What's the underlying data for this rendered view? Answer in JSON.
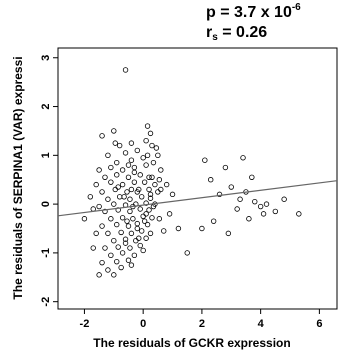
{
  "chart_data": {
    "type": "scatter",
    "stats": {
      "p_text": "p = 3.7 x 10",
      "p_exp": "-6",
      "r_text": "r",
      "r_sub": "s",
      "r_value": "= 0.26"
    },
    "xlabel": "The residuals of GCKR expression",
    "ylabel": "The residuals of SERPINA1 (VAR) expressi",
    "xlim": [
      -2.9,
      6.6
    ],
    "ylim": [
      -2.15,
      3.2
    ],
    "x_ticks": [
      -2,
      0,
      2,
      4,
      6
    ],
    "y_ticks": [
      -2,
      -1,
      0,
      1,
      2,
      3
    ],
    "grid": false,
    "trend_line": {
      "x": [
        -2.9,
        6.6
      ],
      "y": [
        -0.24,
        0.48
      ]
    },
    "points": [
      [
        -0.6,
        2.75
      ],
      [
        0.15,
        1.6
      ],
      [
        0.25,
        1.45
      ],
      [
        -1.0,
        1.5
      ],
      [
        -1.4,
        1.4
      ],
      [
        -0.4,
        1.25
      ],
      [
        -0.8,
        1.2
      ],
      [
        0.1,
        1.3
      ],
      [
        0.3,
        1.2
      ],
      [
        -1.2,
        1.0
      ],
      [
        -0.6,
        1.05
      ],
      [
        -0.2,
        1.1
      ],
      [
        0.5,
        1.0
      ],
      [
        -0.9,
        0.85
      ],
      [
        -0.4,
        0.9
      ],
      [
        0.0,
        0.95
      ],
      [
        0.35,
        0.85
      ],
      [
        -1.5,
        0.7
      ],
      [
        -1.1,
        0.75
      ],
      [
        -0.7,
        0.7
      ],
      [
        -0.3,
        0.75
      ],
      [
        0.1,
        0.8
      ],
      [
        0.6,
        0.7
      ],
      [
        -1.3,
        0.55
      ],
      [
        -0.9,
        0.6
      ],
      [
        -0.5,
        0.55
      ],
      [
        -0.1,
        0.6
      ],
      [
        0.3,
        0.55
      ],
      [
        0.55,
        0.5
      ],
      [
        -1.6,
        0.4
      ],
      [
        -1.1,
        0.45
      ],
      [
        -0.7,
        0.4
      ],
      [
        -0.3,
        0.45
      ],
      [
        0.05,
        0.45
      ],
      [
        0.4,
        0.4
      ],
      [
        -1.4,
        0.25
      ],
      [
        -0.95,
        0.3
      ],
      [
        -0.55,
        0.25
      ],
      [
        -0.15,
        0.3
      ],
      [
        0.2,
        0.3
      ],
      [
        0.5,
        0.25
      ],
      [
        -1.2,
        0.1
      ],
      [
        -0.8,
        0.15
      ],
      [
        -0.45,
        0.1
      ],
      [
        -0.05,
        0.15
      ],
      [
        0.25,
        0.12
      ],
      [
        -1.5,
        -0.05
      ],
      [
        -1.0,
        0.0
      ],
      [
        -0.6,
        -0.02
      ],
      [
        -0.25,
        0.0
      ],
      [
        0.1,
        0.02
      ],
      [
        0.4,
        0.0
      ],
      [
        -1.3,
        -0.15
      ],
      [
        -0.85,
        -0.12
      ],
      [
        -0.45,
        -0.15
      ],
      [
        -0.1,
        -0.1
      ],
      [
        0.2,
        -0.12
      ],
      [
        -1.1,
        -0.3
      ],
      [
        -0.7,
        -0.28
      ],
      [
        -0.35,
        -0.3
      ],
      [
        0.0,
        -0.25
      ],
      [
        0.3,
        -0.28
      ],
      [
        -1.4,
        -0.45
      ],
      [
        -0.9,
        -0.42
      ],
      [
        -0.5,
        -0.45
      ],
      [
        -0.2,
        -0.4
      ],
      [
        0.15,
        -0.42
      ],
      [
        -1.2,
        -0.6
      ],
      [
        -0.75,
        -0.58
      ],
      [
        -0.4,
        -0.6
      ],
      [
        -0.05,
        -0.55
      ],
      [
        0.25,
        -0.6
      ],
      [
        -1.0,
        -0.75
      ],
      [
        -0.6,
        -0.72
      ],
      [
        -0.25,
        -0.75
      ],
      [
        0.1,
        -0.7
      ],
      [
        -1.3,
        -0.9
      ],
      [
        -0.85,
        -0.88
      ],
      [
        -0.45,
        -0.9
      ],
      [
        -0.1,
        -0.85
      ],
      [
        -1.1,
        -1.05
      ],
      [
        -0.7,
        -1.0
      ],
      [
        -0.3,
        -1.05
      ],
      [
        -1.4,
        -1.2
      ],
      [
        -0.9,
        -1.18
      ],
      [
        -0.5,
        -1.15
      ],
      [
        -1.2,
        -1.35
      ],
      [
        -0.75,
        -1.3
      ],
      [
        -1.5,
        -1.45
      ],
      [
        -1.0,
        -1.45
      ],
      [
        -0.4,
        -1.25
      ],
      [
        -2.0,
        -0.3
      ],
      [
        -1.7,
        -0.1
      ],
      [
        -1.6,
        -0.6
      ],
      [
        -1.8,
        0.15
      ],
      [
        -1.7,
        -0.9
      ],
      [
        -0.55,
        -0.35
      ],
      [
        -0.35,
        -0.05
      ],
      [
        -0.2,
        0.25
      ],
      [
        0.05,
        -0.35
      ],
      [
        0.2,
        0.55
      ],
      [
        -0.65,
        0.15
      ],
      [
        0.15,
        1.0
      ],
      [
        0.45,
        1.15
      ],
      [
        -0.85,
        0.35
      ],
      [
        -0.15,
        -0.7
      ],
      [
        0.35,
        -0.05
      ],
      [
        -0.3,
        0.65
      ],
      [
        0.55,
        -0.3
      ],
      [
        -0.95,
        1.25
      ],
      [
        -0.5,
        0.8
      ],
      [
        0.0,
        -0.95
      ],
      [
        -0.6,
        -0.8
      ],
      [
        0.25,
        0.2
      ],
      [
        -0.4,
        0.3
      ],
      [
        0.1,
        -0.2
      ],
      [
        -0.2,
        -0.5
      ],
      [
        0.6,
        0.3
      ],
      [
        2.1,
        0.9
      ],
      [
        2.8,
        0.75
      ],
      [
        3.4,
        0.95
      ],
      [
        3.7,
        0.55
      ],
      [
        2.3,
        0.5
      ],
      [
        2.6,
        0.2
      ],
      [
        3.0,
        0.35
      ],
      [
        3.3,
        0.1
      ],
      [
        3.5,
        0.25
      ],
      [
        3.8,
        0.05
      ],
      [
        4.0,
        -0.05
      ],
      [
        4.2,
        0.0
      ],
      [
        4.5,
        -0.15
      ],
      [
        4.8,
        0.1
      ],
      [
        5.3,
        -0.2
      ],
      [
        2.4,
        -0.35
      ],
      [
        2.9,
        -0.6
      ],
      [
        3.2,
        -0.1
      ],
      [
        3.6,
        -0.3
      ],
      [
        2.0,
        -0.5
      ],
      [
        1.5,
        -1.0
      ],
      [
        4.1,
        -0.2
      ],
      [
        1.2,
        -0.5
      ],
      [
        0.9,
        -0.2
      ],
      [
        0.8,
        0.4
      ],
      [
        0.7,
        -0.55
      ],
      [
        1.0,
        0.2
      ]
    ]
  }
}
